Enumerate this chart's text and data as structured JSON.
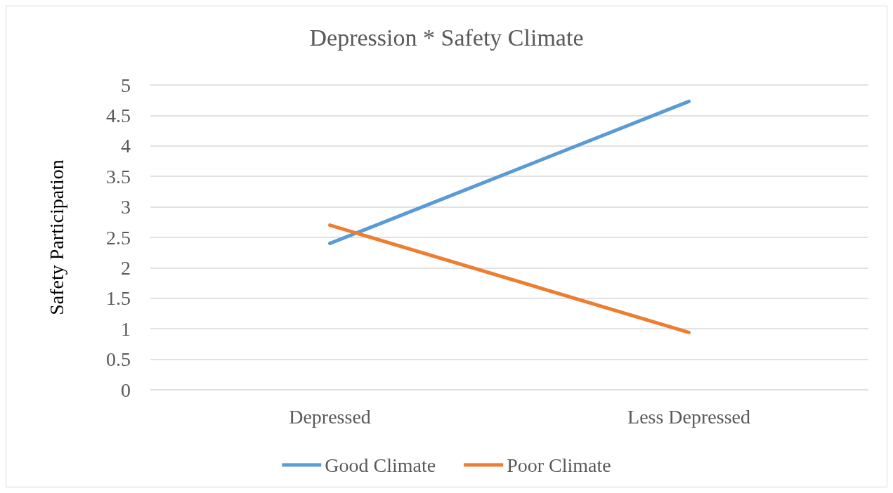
{
  "chart_data": {
    "type": "line",
    "title": "Depression * Safety Climate",
    "ylabel": "Safety Participation",
    "categories": [
      "Depressed",
      "Less Depressed"
    ],
    "series": [
      {
        "name": "Good Climate",
        "color": "#5b9bd5",
        "values": [
          2.4,
          4.73
        ]
      },
      {
        "name": "Poor Climate",
        "color": "#ed7d31",
        "values": [
          2.7,
          0.94
        ]
      }
    ],
    "ylim": [
      0,
      5
    ],
    "yticks": [
      0,
      0.5,
      1,
      1.5,
      2,
      2.5,
      3,
      3.5,
      4,
      4.5,
      5
    ],
    "grid": "y",
    "legend": "bottom",
    "marker": "none",
    "line_style": "solid"
  }
}
